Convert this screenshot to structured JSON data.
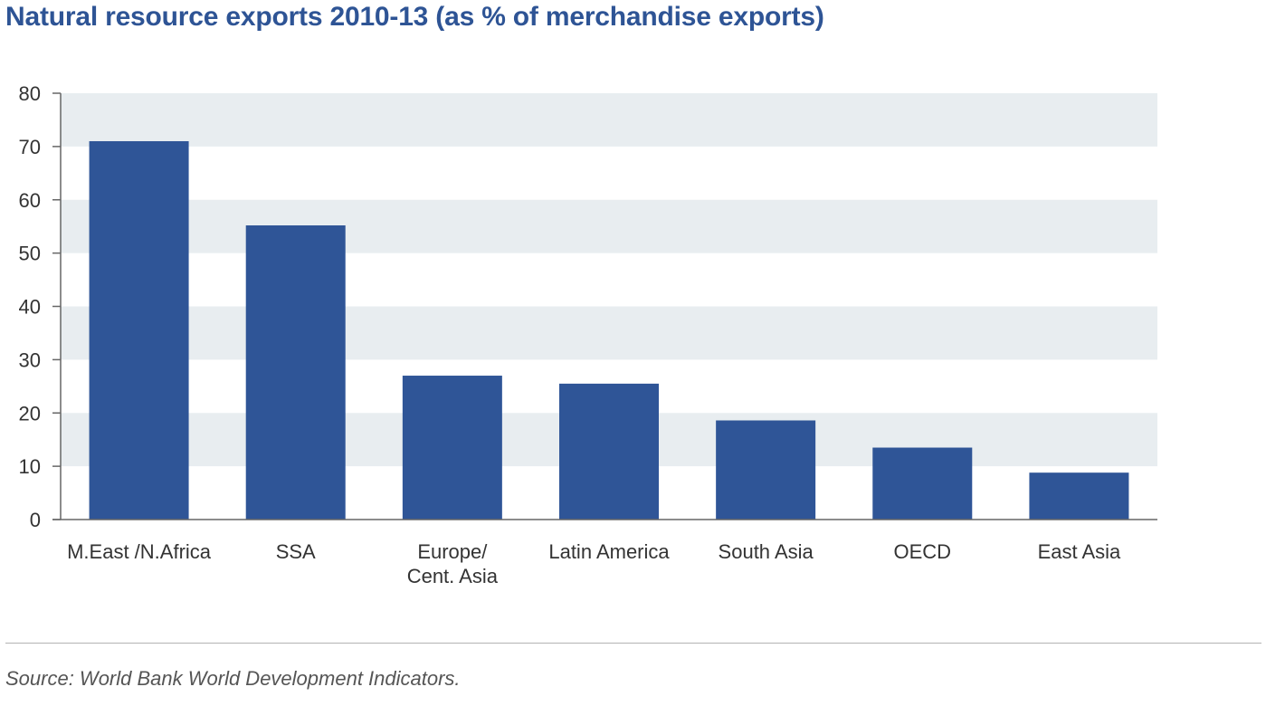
{
  "title": "Natural resource exports 2010-13 (as % of merchandise exports)",
  "source": "Source: World Bank World Development Indicators.",
  "colors": {
    "bar": "#2f5597",
    "band": "#e8edf0",
    "axis": "#666666",
    "title": "#2e5495"
  },
  "chart_data": {
    "type": "bar",
    "categories": [
      "M.East /N.Africa",
      "SSA",
      "Europe/\nCent. Asia",
      "Latin America",
      "South Asia",
      "OECD",
      "East Asia"
    ],
    "values": [
      71,
      55.2,
      27,
      25.5,
      18.6,
      13.5,
      8.8
    ],
    "yticks": [
      0,
      10,
      20,
      30,
      40,
      50,
      60,
      70,
      80
    ],
    "ylim": [
      0,
      80
    ],
    "grid": "alternating horizontal bands",
    "legend": "none"
  }
}
